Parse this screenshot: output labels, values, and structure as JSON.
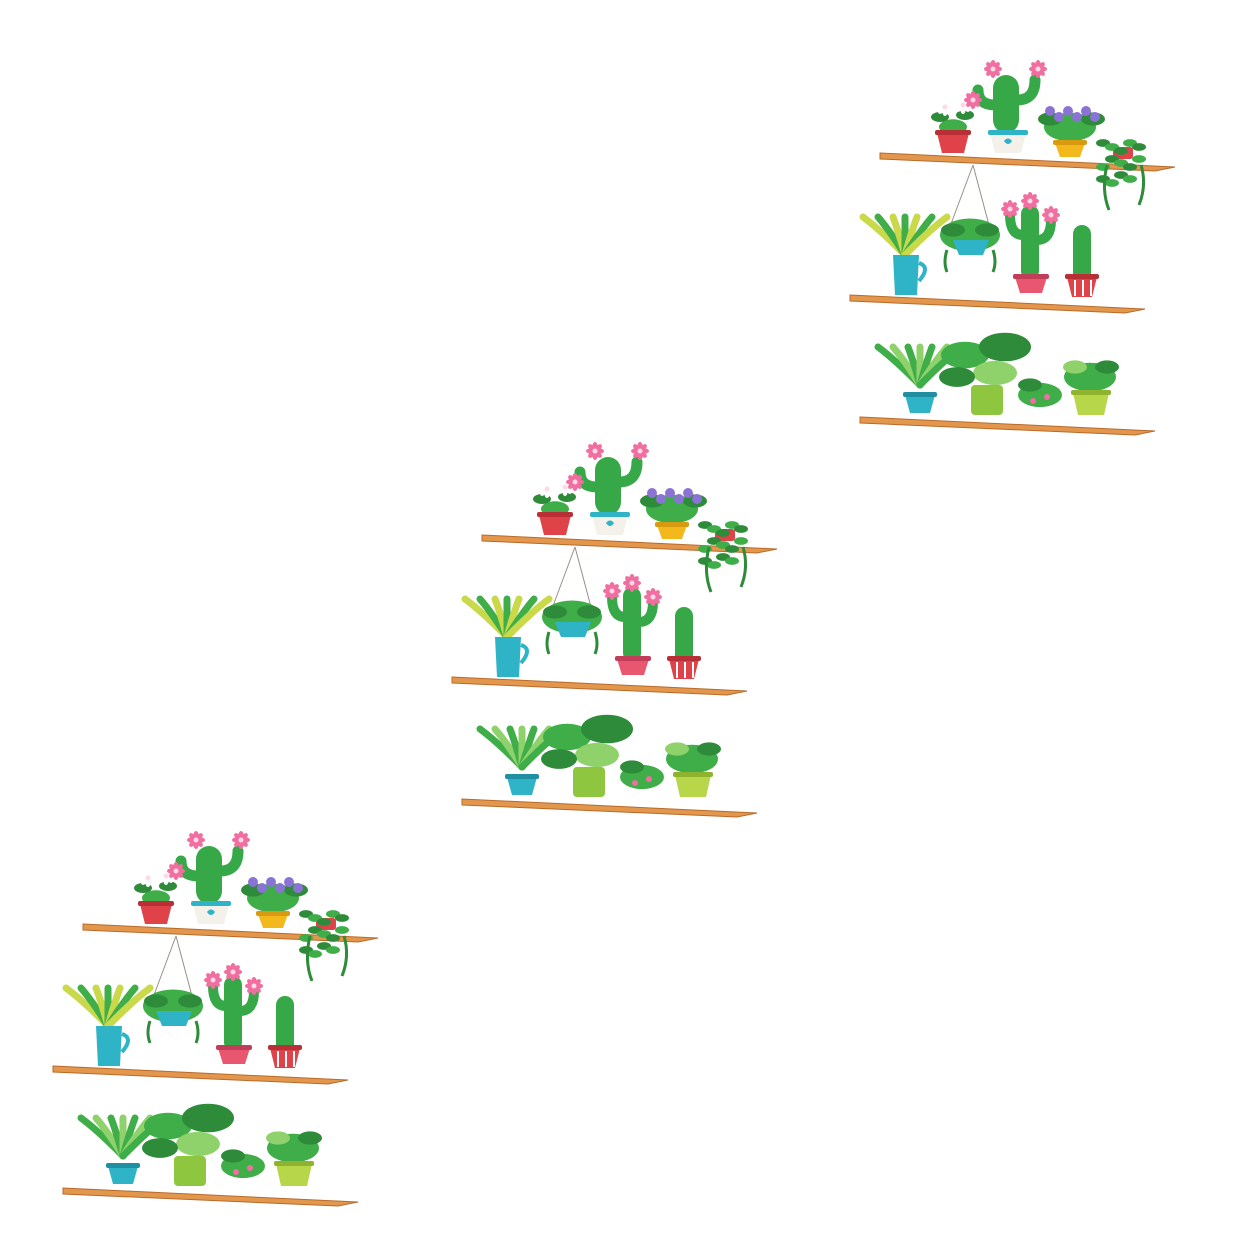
{
  "scene": {
    "background": "#ffffff",
    "description_kind": "product-image",
    "groups": [
      {
        "name": "plant-shelf-set-top-right"
      },
      {
        "name": "plant-shelf-set-middle"
      },
      {
        "name": "plant-shelf-set-bottom-left"
      }
    ]
  },
  "colors": {
    "shelf": "#e3974d",
    "shelf_edge": "#b86a2a",
    "leaf_dark": "#2e8b3a",
    "leaf_mid": "#3fae49",
    "leaf_light": "#8fd16a",
    "cactus": "#37a847",
    "flower_pink": "#f06fa0",
    "flower_purple": "#8b73d6",
    "pot_red": "#e0424a",
    "pot_blue": "#2fb3c6",
    "pot_yellow": "#f2b81c",
    "pot_green": "#8fc63f",
    "pot_white": "#f3f1ea"
  }
}
